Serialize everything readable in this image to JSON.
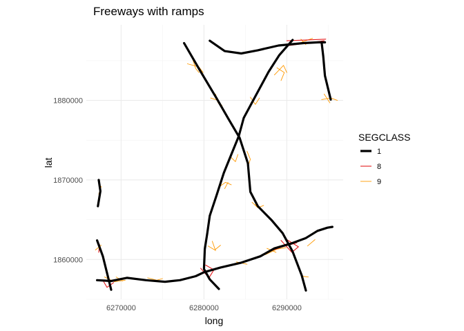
{
  "chart_data": {
    "type": "map",
    "title": "Freeways with ramps",
    "xlabel": "long",
    "ylabel": "lat",
    "xlim": [
      6265800,
      6296800
    ],
    "ylim": [
      1855000,
      1889500
    ],
    "x_ticks": [
      6270000,
      6280000,
      6290000
    ],
    "x_tick_labels": [
      "6270000",
      "6280000",
      "6290000"
    ],
    "y_ticks": [
      1860000,
      1870000,
      1880000
    ],
    "y_tick_labels": [
      "1860000",
      "1870000",
      "1880000"
    ],
    "grid": true,
    "legend": {
      "title": "SEGCLASS",
      "placement": "right",
      "entries": [
        {
          "label": "1",
          "color": "#000000"
        },
        {
          "label": "8",
          "color": "#e41a1c"
        },
        {
          "label": "9",
          "color": "#ff9900"
        }
      ]
    },
    "series": [
      {
        "name": "1",
        "color": "#000000",
        "paths": [
          [
            [
              6277600,
              1887200
            ],
            [
              6279500,
              1883800
            ],
            [
              6281500,
              1880300
            ],
            [
              6283000,
              1877600
            ],
            [
              6284300,
              1875300
            ],
            [
              6285300,
              1872100
            ],
            [
              6285600,
              1868500
            ],
            [
              6286500,
              1866700
            ],
            [
              6288200,
              1864900
            ],
            [
              6289500,
              1863300
            ],
            [
              6290700,
              1861000
            ],
            [
              6291800,
              1858000
            ],
            [
              6292300,
              1856100
            ]
          ],
          [
            [
              6290700,
              1887600
            ],
            [
              6289100,
              1885700
            ],
            [
              6287800,
              1883600
            ],
            [
              6286300,
              1880700
            ],
            [
              6284800,
              1877800
            ],
            [
              6284200,
              1875500
            ],
            [
              6283300,
              1873200
            ],
            [
              6282400,
              1870900
            ],
            [
              6281500,
              1868000
            ],
            [
              6280700,
              1865500
            ],
            [
              6280400,
              1863300
            ],
            [
              6280100,
              1861300
            ],
            [
              6280000,
              1858800
            ],
            [
              6280700,
              1857500
            ],
            [
              6281800,
              1856300
            ]
          ],
          [
            [
              6280700,
              1887500
            ],
            [
              6282500,
              1886200
            ],
            [
              6284500,
              1885900
            ],
            [
              6286500,
              1886300
            ],
            [
              6289000,
              1886900
            ],
            [
              6292000,
              1887200
            ],
            [
              6293800,
              1887300
            ],
            [
              6294600,
              1887300
            ]
          ],
          [
            [
              6294200,
              1887300
            ],
            [
              6294400,
              1885500
            ],
            [
              6294600,
              1883100
            ],
            [
              6295300,
              1880100
            ]
          ],
          [
            [
              6267100,
              1857400
            ],
            [
              6268800,
              1857300
            ],
            [
              6270700,
              1857700
            ],
            [
              6273000,
              1857400
            ],
            [
              6275300,
              1857200
            ],
            [
              6277100,
              1857400
            ],
            [
              6279000,
              1857900
            ],
            [
              6280000,
              1858400
            ],
            [
              6282000,
              1859000
            ],
            [
              6284500,
              1859600
            ],
            [
              6286800,
              1860400
            ],
            [
              6288500,
              1861400
            ],
            [
              6290500,
              1862000
            ],
            [
              6292300,
              1862700
            ],
            [
              6293700,
              1863600
            ],
            [
              6294900,
              1864000
            ],
            [
              6295500,
              1864100
            ]
          ],
          [
            [
              6267100,
              1862400
            ],
            [
              6267800,
              1860400
            ],
            [
              6268300,
              1858300
            ],
            [
              6268800,
              1856200
            ]
          ],
          [
            [
              6267300,
              1870000
            ],
            [
              6267500,
              1868600
            ],
            [
              6267200,
              1866700
            ]
          ]
        ]
      },
      {
        "name": "8",
        "color": "#e41a1c",
        "paths": [
          [
            [
              6290300,
              1886900
            ],
            [
              6292500,
              1887200
            ],
            [
              6294500,
              1887500
            ]
          ],
          [
            [
              6290000,
              1887500
            ],
            [
              6292500,
              1887600
            ],
            [
              6294700,
              1887700
            ]
          ],
          [
            [
              6289300,
              1862400
            ],
            [
              6290600,
              1860900
            ],
            [
              6291400,
              1861600
            ],
            [
              6290000,
              1862500
            ]
          ],
          [
            [
              6279600,
              1858900
            ],
            [
              6280600,
              1857700
            ],
            [
              6281200,
              1858700
            ],
            [
              6280200,
              1859300
            ]
          ],
          [
            [
              6267900,
              1857200
            ],
            [
              6268300,
              1856500
            ],
            [
              6269100,
              1857100
            ]
          ],
          [
            [
              6267300,
              1860900
            ],
            [
              6267400,
              1861900
            ]
          ],
          [
            [
              6287800,
              1861000
            ],
            [
              6289500,
              1861600
            ],
            [
              6291200,
              1862100
            ]
          ]
        ]
      },
      {
        "name": "9",
        "color": "#ff9900",
        "paths": [
          [
            [
              6278000,
              1884600
            ],
            [
              6279400,
              1884200
            ],
            [
              6279900,
              1883500
            ]
          ],
          [
            [
              6278600,
              1885300
            ],
            [
              6279000,
              1884000
            ],
            [
              6279400,
              1883500
            ]
          ],
          [
            [
              6280800,
              1880300
            ],
            [
              6281700,
              1880000
            ],
            [
              6282200,
              1879300
            ]
          ],
          [
            [
              6281400,
              1880800
            ],
            [
              6281700,
              1879700
            ],
            [
              6282100,
              1879200
            ]
          ],
          [
            [
              6285600,
              1880400
            ],
            [
              6286200,
              1879500
            ],
            [
              6286700,
              1880300
            ]
          ],
          [
            [
              6288800,
              1884100
            ],
            [
              6289700,
              1883500
            ],
            [
              6289300,
              1882500
            ]
          ],
          [
            [
              6288500,
              1883200
            ],
            [
              6289600,
              1884400
            ],
            [
              6290000,
              1883500
            ]
          ],
          [
            [
              6294200,
              1880100
            ],
            [
              6295300,
              1880300
            ],
            [
              6296100,
              1880000
            ]
          ],
          [
            [
              6294500,
              1880800
            ],
            [
              6295200,
              1879700
            ]
          ],
          [
            [
              6283200,
              1872900
            ],
            [
              6283800,
              1872300
            ],
            [
              6284100,
              1873200
            ]
          ],
          [
            [
              6285200,
              1873600
            ],
            [
              6285600,
              1872600
            ],
            [
              6285300,
              1871700
            ]
          ],
          [
            [
              6281800,
              1869100
            ],
            [
              6282600,
              1869700
            ],
            [
              6283300,
              1869400
            ]
          ],
          [
            [
              6282500,
              1868900
            ],
            [
              6282900,
              1869700
            ]
          ],
          [
            [
              6285800,
              1867200
            ],
            [
              6286500,
              1866500
            ],
            [
              6287200,
              1866800
            ]
          ],
          [
            [
              6286200,
              1866900
            ],
            [
              6286900,
              1866300
            ]
          ],
          [
            [
              6280500,
              1861700
            ],
            [
              6281300,
              1861200
            ],
            [
              6282000,
              1861800
            ]
          ],
          [
            [
              6281000,
              1862300
            ],
            [
              6281400,
              1861100
            ]
          ],
          [
            [
              6287400,
              1860600
            ],
            [
              6288800,
              1861300
            ],
            [
              6289900,
              1861500
            ]
          ],
          [
            [
              6287600,
              1861400
            ],
            [
              6288700,
              1860900
            ]
          ],
          [
            [
              6292500,
              1861700
            ],
            [
              6293400,
              1862500
            ]
          ],
          [
            [
              6268000,
              1857800
            ],
            [
              6269200,
              1857200
            ],
            [
              6270500,
              1857400
            ]
          ],
          [
            [
              6269400,
              1857800
            ],
            [
              6270200,
              1857300
            ]
          ],
          [
            [
              6273200,
              1857700
            ],
            [
              6274300,
              1857400
            ],
            [
              6275000,
              1857600
            ]
          ],
          [
            [
              6291800,
              1857900
            ],
            [
              6292600,
              1857800
            ]
          ],
          [
            [
              6267300,
              1868200
            ],
            [
              6267600,
              1869200
            ]
          ],
          [
            [
              6266900,
              1861200
            ],
            [
              6267600,
              1861800
            ]
          ],
          [
            [
              6283900,
              1859700
            ],
            [
              6285200,
              1859400
            ]
          ],
          [
            [
              6291500,
              1887200
            ],
            [
              6293100,
              1887800
            ]
          ],
          [
            [
              6291700,
              1887700
            ],
            [
              6292300,
              1887000
            ]
          ]
        ]
      }
    ]
  }
}
